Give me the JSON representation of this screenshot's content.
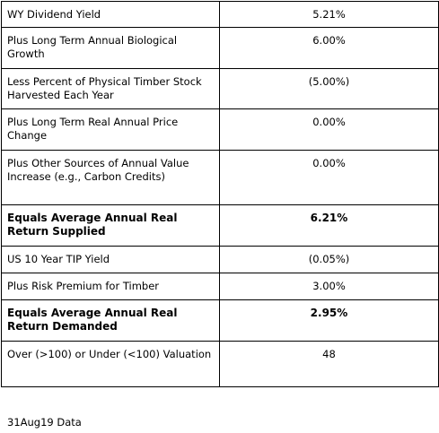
{
  "table": {
    "rows": [
      [
        "WY Dividend Yield",
        "5.21%"
      ],
      [
        "Plus Long Term Annual Biological Growth",
        "6.00%"
      ],
      [
        "Less Percent of Physical Timber Stock Harvested Each Year",
        "(5.00%)"
      ],
      [
        "Plus Long Term Real Annual Price Change",
        "0.00%"
      ],
      [
        "Plus Other Sources of Annual Value Increase (e.g., Carbon Credits)",
        "0.00%"
      ],
      [
        "Equals Average Annual Real Return Supplied",
        "6.21%"
      ],
      [
        "US 10 Year TIP Yield",
        "(0.05%)"
      ],
      [
        "Plus Risk Premium for Timber",
        "3.00%"
      ],
      [
        "Equals Average Annual Real Return Demanded",
        "2.95%"
      ],
      [
        "Over (>100) or Under (<100) Valuation",
        "48"
      ]
    ]
  },
  "footer": {
    "note": "31Aug19 Data"
  }
}
